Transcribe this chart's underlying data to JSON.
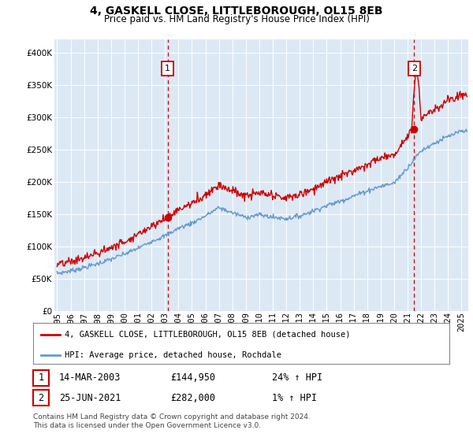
{
  "title": "4, GASKELL CLOSE, LITTLEBOROUGH, OL15 8EB",
  "subtitle": "Price paid vs. HM Land Registry's House Price Index (HPI)",
  "ylim": [
    0,
    420000
  ],
  "xlim_start": 1994.8,
  "xlim_end": 2025.5,
  "plot_bg_color": "#dce9f5",
  "grid_color": "#ffffff",
  "sale1": {
    "date_num": 2003.2,
    "price": 144950,
    "label": "1",
    "date_str": "14-MAR-2003",
    "pct": "24% ↑ HPI"
  },
  "sale2": {
    "date_num": 2021.48,
    "price": 282000,
    "label": "2",
    "date_str": "25-JUN-2021",
    "pct": "1% ↑ HPI"
  },
  "legend_property": "4, GASKELL CLOSE, LITTLEBOROUGH, OL15 8EB (detached house)",
  "legend_hpi": "HPI: Average price, detached house, Rochdale",
  "footer": "Contains HM Land Registry data © Crown copyright and database right 2024.\nThis data is licensed under the Open Government Licence v3.0.",
  "property_line_color": "#cc0000",
  "hpi_line_color": "#6699cc",
  "vline_color": "#cc0000",
  "sale_box_color": "#cc0000",
  "xticks": [
    1995,
    1996,
    1997,
    1998,
    1999,
    2000,
    2001,
    2002,
    2003,
    2004,
    2005,
    2006,
    2007,
    2008,
    2009,
    2010,
    2011,
    2012,
    2013,
    2014,
    2015,
    2016,
    2017,
    2018,
    2019,
    2020,
    2021,
    2022,
    2023,
    2024,
    2025
  ],
  "yticks": [
    0,
    50000,
    100000,
    150000,
    200000,
    250000,
    300000,
    350000,
    400000
  ],
  "title_fontsize": 10,
  "subtitle_fontsize": 8.5,
  "tick_fontsize": 7.5,
  "legend_fontsize": 7.5,
  "sale_info_fontsize": 8.5,
  "footer_fontsize": 6.5
}
